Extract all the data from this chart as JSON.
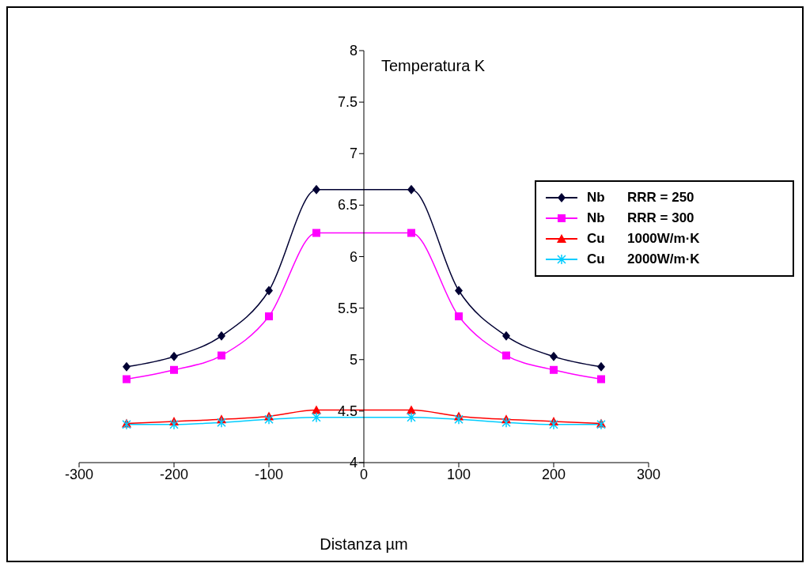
{
  "chart_data": {
    "type": "line",
    "xlabel": "Distanza µm",
    "ylabel": "Temperatura K",
    "x": [
      -250,
      -200,
      -150,
      -100,
      -50,
      50,
      100,
      150,
      200,
      250
    ],
    "series": [
      {
        "name": "Nb      RRR = 250",
        "color": "#000033",
        "marker": "diamond",
        "values": [
          4.93,
          5.03,
          5.23,
          5.67,
          6.65,
          6.65,
          5.67,
          5.23,
          5.03,
          4.93
        ]
      },
      {
        "name": "Nb      RRR = 300",
        "color": "#ff00ff",
        "marker": "square",
        "values": [
          4.81,
          4.9,
          5.04,
          5.42,
          6.23,
          6.23,
          5.42,
          5.04,
          4.9,
          4.81
        ]
      },
      {
        "name": "Cu      1000W/m·K",
        "color": "#ff0000",
        "marker": "triangle",
        "values": [
          4.38,
          4.4,
          4.42,
          4.45,
          4.51,
          4.51,
          4.45,
          4.42,
          4.4,
          4.38
        ]
      },
      {
        "name": "Cu      2000W/m·K",
        "color": "#00ccff",
        "marker": "cross",
        "values": [
          4.37,
          4.37,
          4.39,
          4.42,
          4.44,
          4.44,
          4.42,
          4.39,
          4.37,
          4.37
        ]
      }
    ],
    "xlim": [
      -300,
      300
    ],
    "xticks": [
      -300,
      -200,
      -100,
      0,
      100,
      200,
      300
    ],
    "ylim": [
      4,
      8
    ],
    "yticks": [
      4,
      4.5,
      5,
      5.5,
      6,
      6.5,
      7,
      7.5,
      8
    ],
    "grid": false,
    "legend": "right",
    "line_style": "solid"
  }
}
